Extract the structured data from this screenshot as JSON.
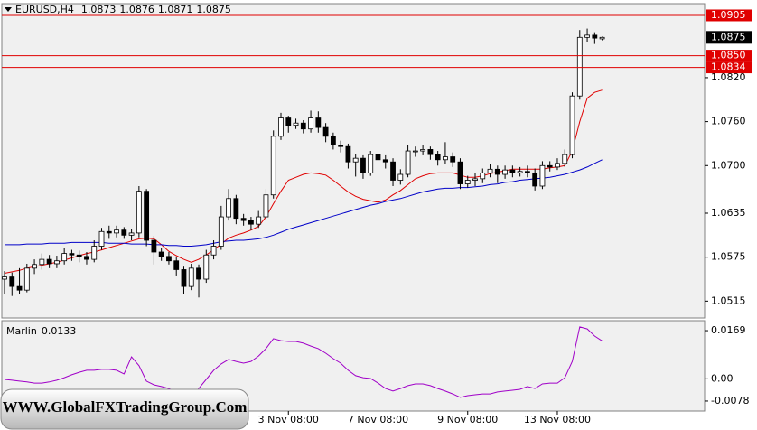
{
  "chart_data": [
    {
      "type": "candlestick",
      "title": "EURUSD,H4",
      "categories": [
        null,
        null,
        null,
        null,
        null,
        null,
        null,
        null,
        null,
        null,
        null,
        null,
        null,
        null,
        null,
        null,
        null,
        null,
        null,
        null,
        null,
        null,
        null,
        null,
        null,
        null,
        null,
        null,
        null,
        null,
        null,
        null,
        null,
        null,
        null,
        null,
        null,
        null,
        "3 Nov 08:00",
        null,
        null,
        null,
        null,
        null,
        null,
        null,
        null,
        null,
        null,
        null,
        "7 Nov 08:00",
        null,
        null,
        null,
        null,
        null,
        null,
        null,
        null,
        null,
        null,
        null,
        "9 Nov 08:00",
        null,
        null,
        null,
        null,
        null,
        null,
        null,
        null,
        null,
        null,
        null,
        "13 Nov 08:00",
        null,
        null,
        null,
        null,
        null,
        null
      ],
      "open": [
        1.0545,
        1.0548,
        1.0535,
        1.053,
        1.056,
        1.0565,
        1.0572,
        1.0566,
        1.057,
        1.058,
        1.0578,
        1.0576,
        1.0572,
        1.059,
        1.061,
        1.0608,
        1.0612,
        1.0605,
        1.0608,
        1.0665,
        1.0598,
        1.0582,
        1.0576,
        1.057,
        1.0558,
        1.0535,
        1.056,
        1.0545,
        1.0578,
        1.059,
        1.063,
        1.0655,
        1.0628,
        1.0625,
        1.062,
        1.063,
        1.066,
        1.074,
        1.0765,
        1.0755,
        1.0758,
        1.075,
        1.0765,
        1.0752,
        1.074,
        1.0728,
        1.0726,
        1.0705,
        1.071,
        1.069,
        1.0715,
        1.0708,
        1.0705,
        1.068,
        1.0688,
        1.072,
        1.072,
        1.0722,
        1.0715,
        1.0708,
        1.0712,
        1.0705,
        1.0675,
        1.068,
        1.0682,
        1.069,
        1.0695,
        1.0688,
        1.0694,
        1.069,
        1.0692,
        1.069,
        1.0672,
        1.07,
        1.0698,
        1.0703,
        1.0715,
        1.0795,
        1.0875,
        1.0878,
        1.0873
      ],
      "high": [
        1.0556,
        1.0554,
        1.056,
        1.0566,
        1.0572,
        1.058,
        1.0578,
        1.0577,
        1.0588,
        1.0585,
        1.0584,
        1.0582,
        1.0598,
        1.0615,
        1.0618,
        1.0618,
        1.0616,
        1.0614,
        1.0672,
        1.0668,
        1.0604,
        1.0588,
        1.0582,
        1.0575,
        1.0562,
        1.0566,
        1.0565,
        1.0585,
        1.0598,
        1.0645,
        1.0668,
        1.066,
        1.0634,
        1.063,
        1.0638,
        1.0668,
        1.0748,
        1.0772,
        1.0768,
        1.0764,
        1.0762,
        1.0775,
        1.0774,
        1.0758,
        1.0745,
        1.0734,
        1.073,
        1.0716,
        1.0714,
        1.072,
        1.072,
        1.0714,
        1.071,
        1.0695,
        1.0728,
        1.0726,
        1.0728,
        1.0726,
        1.072,
        1.0732,
        1.0718,
        1.071,
        1.0686,
        1.069,
        1.0696,
        1.0702,
        1.07,
        1.07,
        1.07,
        1.0698,
        1.07,
        1.0696,
        1.0706,
        1.0706,
        1.071,
        1.0722,
        1.08,
        1.0885,
        1.0887,
        1.0882,
        1.0876
      ],
      "low": [
        1.0525,
        1.0522,
        1.0525,
        1.0527,
        1.0552,
        1.0558,
        1.056,
        1.056,
        1.0565,
        1.057,
        1.0568,
        1.0565,
        1.0568,
        1.0585,
        1.06,
        1.0602,
        1.06,
        1.0598,
        1.0602,
        1.059,
        1.0565,
        1.057,
        1.0565,
        1.055,
        1.0525,
        1.053,
        1.052,
        1.054,
        1.0572,
        1.0585,
        1.0625,
        1.062,
        1.0618,
        1.0612,
        1.0615,
        1.0625,
        1.0655,
        1.0735,
        1.0745,
        1.075,
        1.0744,
        1.0745,
        1.0745,
        1.0732,
        1.0722,
        1.0718,
        1.0696,
        1.0685,
        1.0682,
        1.0686,
        1.07,
        1.0696,
        1.0672,
        1.0674,
        1.0684,
        1.0712,
        1.0714,
        1.0708,
        1.07,
        1.0702,
        1.0698,
        1.0668,
        1.067,
        1.0672,
        1.0676,
        1.0684,
        1.0676,
        1.0682,
        1.0684,
        1.0685,
        1.0684,
        1.0666,
        1.0668,
        1.0692,
        1.0694,
        1.0698,
        1.071,
        1.079,
        1.0868,
        1.0866,
        1.0871
      ],
      "close": [
        1.0548,
        1.0535,
        1.053,
        1.056,
        1.0565,
        1.0572,
        1.0566,
        1.057,
        1.058,
        1.0578,
        1.0576,
        1.0572,
        1.059,
        1.061,
        1.0608,
        1.0612,
        1.0605,
        1.0608,
        1.0665,
        1.0598,
        1.0582,
        1.0576,
        1.057,
        1.0558,
        1.0535,
        1.056,
        1.0545,
        1.0578,
        1.059,
        1.063,
        1.0655,
        1.0628,
        1.0625,
        1.062,
        1.063,
        1.066,
        1.074,
        1.0765,
        1.0755,
        1.0758,
        1.075,
        1.0765,
        1.0752,
        1.074,
        1.0728,
        1.0726,
        1.0705,
        1.071,
        1.069,
        1.0715,
        1.0708,
        1.0705,
        1.068,
        1.0688,
        1.072,
        1.072,
        1.0722,
        1.0715,
        1.0708,
        1.0712,
        1.0705,
        1.0675,
        1.068,
        1.0682,
        1.069,
        1.0695,
        1.0688,
        1.0694,
        1.069,
        1.0692,
        1.069,
        1.0672,
        1.07,
        1.0698,
        1.0703,
        1.0715,
        1.0795,
        1.0875,
        1.0878,
        1.0874,
        1.0875
      ],
      "up_color": "#ffffff",
      "down_color": "#000000",
      "lines": [
        {
          "color": "#e00000",
          "values": [
            1.0553,
            1.0555,
            1.0557,
            1.056,
            1.0562,
            1.0564,
            1.0566,
            1.0568,
            1.0571,
            1.0574,
            1.0577,
            1.058,
            1.0582,
            1.0585,
            1.0588,
            1.0591,
            1.0594,
            1.0597,
            1.06,
            1.0601,
            1.06,
            1.0592,
            1.0583,
            1.0577,
            1.0572,
            1.0568,
            1.0572,
            1.0578,
            1.0585,
            1.0593,
            1.0601,
            1.0605,
            1.0608,
            1.0612,
            1.0617,
            1.063,
            1.0648,
            1.0665,
            1.068,
            1.0684,
            1.0688,
            1.069,
            1.0689,
            1.0687,
            1.068,
            1.0672,
            1.0664,
            1.0658,
            1.0654,
            1.0652,
            1.065,
            1.0653,
            1.066,
            1.0666,
            1.0674,
            1.0682,
            1.0686,
            1.0689,
            1.069,
            1.069,
            1.069,
            1.0687,
            1.0684,
            1.0684,
            1.0686,
            1.0689,
            1.0691,
            1.0693,
            1.0695,
            1.0695,
            1.0695,
            1.0695,
            1.0695,
            1.0697,
            1.0698,
            1.07,
            1.072,
            1.076,
            1.0792,
            1.08,
            1.0803
          ]
        },
        {
          "color": "#0000c8",
          "values": [
            1.0592,
            1.0592,
            1.0592,
            1.0593,
            1.0593,
            1.0593,
            1.0594,
            1.0594,
            1.0594,
            1.0595,
            1.0595,
            1.0595,
            1.0595,
            1.0595,
            1.0594,
            1.0594,
            1.0594,
            1.0593,
            1.0593,
            1.0593,
            1.0592,
            1.0592,
            1.0591,
            1.0591,
            1.059,
            1.059,
            1.0591,
            1.0592,
            1.0594,
            1.0596,
            1.0597,
            1.0598,
            1.0598,
            1.0599,
            1.06,
            1.0602,
            1.0605,
            1.0609,
            1.0613,
            1.0616,
            1.0619,
            1.0622,
            1.0625,
            1.0628,
            1.0631,
            1.0634,
            1.0637,
            1.064,
            1.0643,
            1.0646,
            1.0648,
            1.0651,
            1.0653,
            1.0655,
            1.0658,
            1.0661,
            1.0664,
            1.0666,
            1.0668,
            1.0669,
            1.0669,
            1.067,
            1.067,
            1.0671,
            1.0672,
            1.0674,
            1.0675,
            1.0677,
            1.0678,
            1.068,
            1.0681,
            1.0682,
            1.0683,
            1.0684,
            1.0686,
            1.0688,
            1.0691,
            1.0694,
            1.0698,
            1.0703,
            1.0708
          ]
        }
      ],
      "hlines": [
        1.0905,
        {
          "value": 1.085,
          "label": "1.0850"
        },
        1.0834
      ],
      "hline_color": "#e00000",
      "ylim": [
        1.0492,
        1.0921
      ],
      "yticks": [
        {
          "value": 1.082,
          "label": "1.0820"
        },
        {
          "value": 1.076,
          "label": "1.0760"
        },
        {
          "value": 1.07,
          "label": "1.0700"
        },
        1.0635,
        1.0575,
        1.0515
      ]
    },
    {
      "type": "line",
      "title": "Marlin",
      "color": "#a000c8",
      "values": [
        -0.0002,
        -0.0005,
        -0.0008,
        -0.0011,
        -0.0015,
        -0.0015,
        -0.0011,
        -0.0005,
        0.0004,
        0.0014,
        0.0023,
        0.003,
        0.003,
        0.0033,
        0.0033,
        0.003,
        0.0017,
        0.0077,
        0.0046,
        -0.0008,
        -0.0021,
        -0.0027,
        -0.0034,
        -0.0046,
        -0.0059,
        -0.0065,
        -0.0034,
        -0.0002,
        0.003,
        0.0052,
        0.0068,
        0.0061,
        0.0055,
        0.0061,
        0.008,
        0.0106,
        0.0141,
        0.0134,
        0.0131,
        0.0131,
        0.0125,
        0.0115,
        0.0106,
        0.009,
        0.0071,
        0.0055,
        0.003,
        0.0011,
        0.0004,
        0.0001,
        -0.0015,
        -0.0034,
        -0.0043,
        -0.0034,
        -0.0024,
        -0.0018,
        -0.0018,
        -0.0024,
        -0.0034,
        -0.0043,
        -0.0053,
        -0.0065,
        -0.0059,
        -0.0056,
        -0.0053,
        -0.0053,
        -0.0046,
        -0.0043,
        -0.004,
        -0.0037,
        -0.0027,
        -0.0034,
        -0.0018,
        -0.0015,
        -0.0015,
        0.0004,
        0.0061,
        0.0182,
        0.0175,
        0.015,
        0.0133
      ],
      "ylim": [
        -0.0113,
        0.0204
      ],
      "yticks": [
        0.0169,
        {
          "value": 0,
          "label": "0.00"
        },
        -0.0078
      ]
    }
  ],
  "watermark": "WWW.GlobalFXTradingGroup.Com"
}
